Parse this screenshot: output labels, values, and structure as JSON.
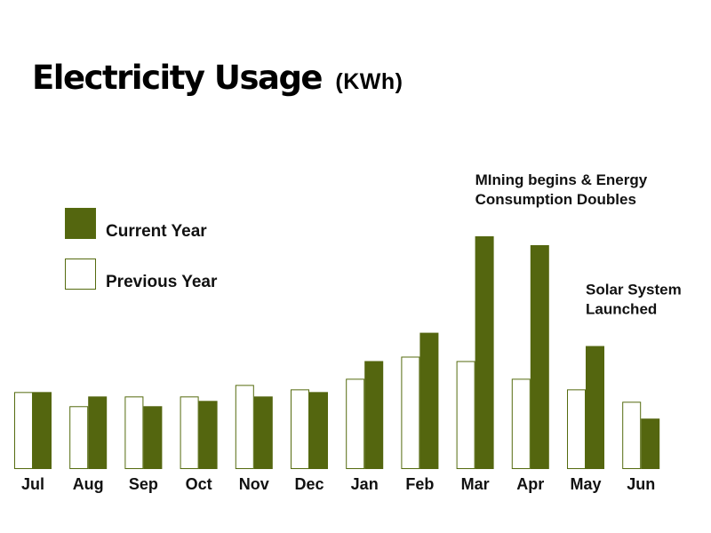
{
  "title": {
    "main": "Electricity Usage",
    "unit": "(KWh)"
  },
  "legend": {
    "current": {
      "label": "Current Year",
      "color": "#54660f"
    },
    "previous": {
      "label": "Previous Year",
      "color": "#ffffff",
      "border": "#556b0f"
    }
  },
  "chart_data": {
    "type": "bar",
    "title": "Electricity Usage (KWh)",
    "xlabel": "",
    "ylabel": "",
    "grid": false,
    "legend_position": "left",
    "ylim": [
      0,
      265
    ],
    "categories": [
      "Jul",
      "Aug",
      "Sep",
      "Oct",
      "Nov",
      "Dec",
      "Jan",
      "Feb",
      "Mar",
      "Apr",
      "May",
      "Jun"
    ],
    "series": [
      {
        "name": "Previous Year",
        "values": [
          87,
          71,
          82,
          82,
          95,
          90,
          102,
          127,
          122,
          102,
          90,
          76
        ]
      },
      {
        "name": "Current Year",
        "values": [
          87,
          82,
          71,
          77,
          82,
          87,
          122,
          154,
          263,
          253,
          139,
          57
        ]
      }
    ],
    "annotations": [
      {
        "category": "Mar",
        "lines": [
          "MIning begins & Energy",
          "Consumption Doubles"
        ]
      },
      {
        "category": "May",
        "lines": [
          "Solar System",
          "Launched"
        ]
      }
    ]
  }
}
